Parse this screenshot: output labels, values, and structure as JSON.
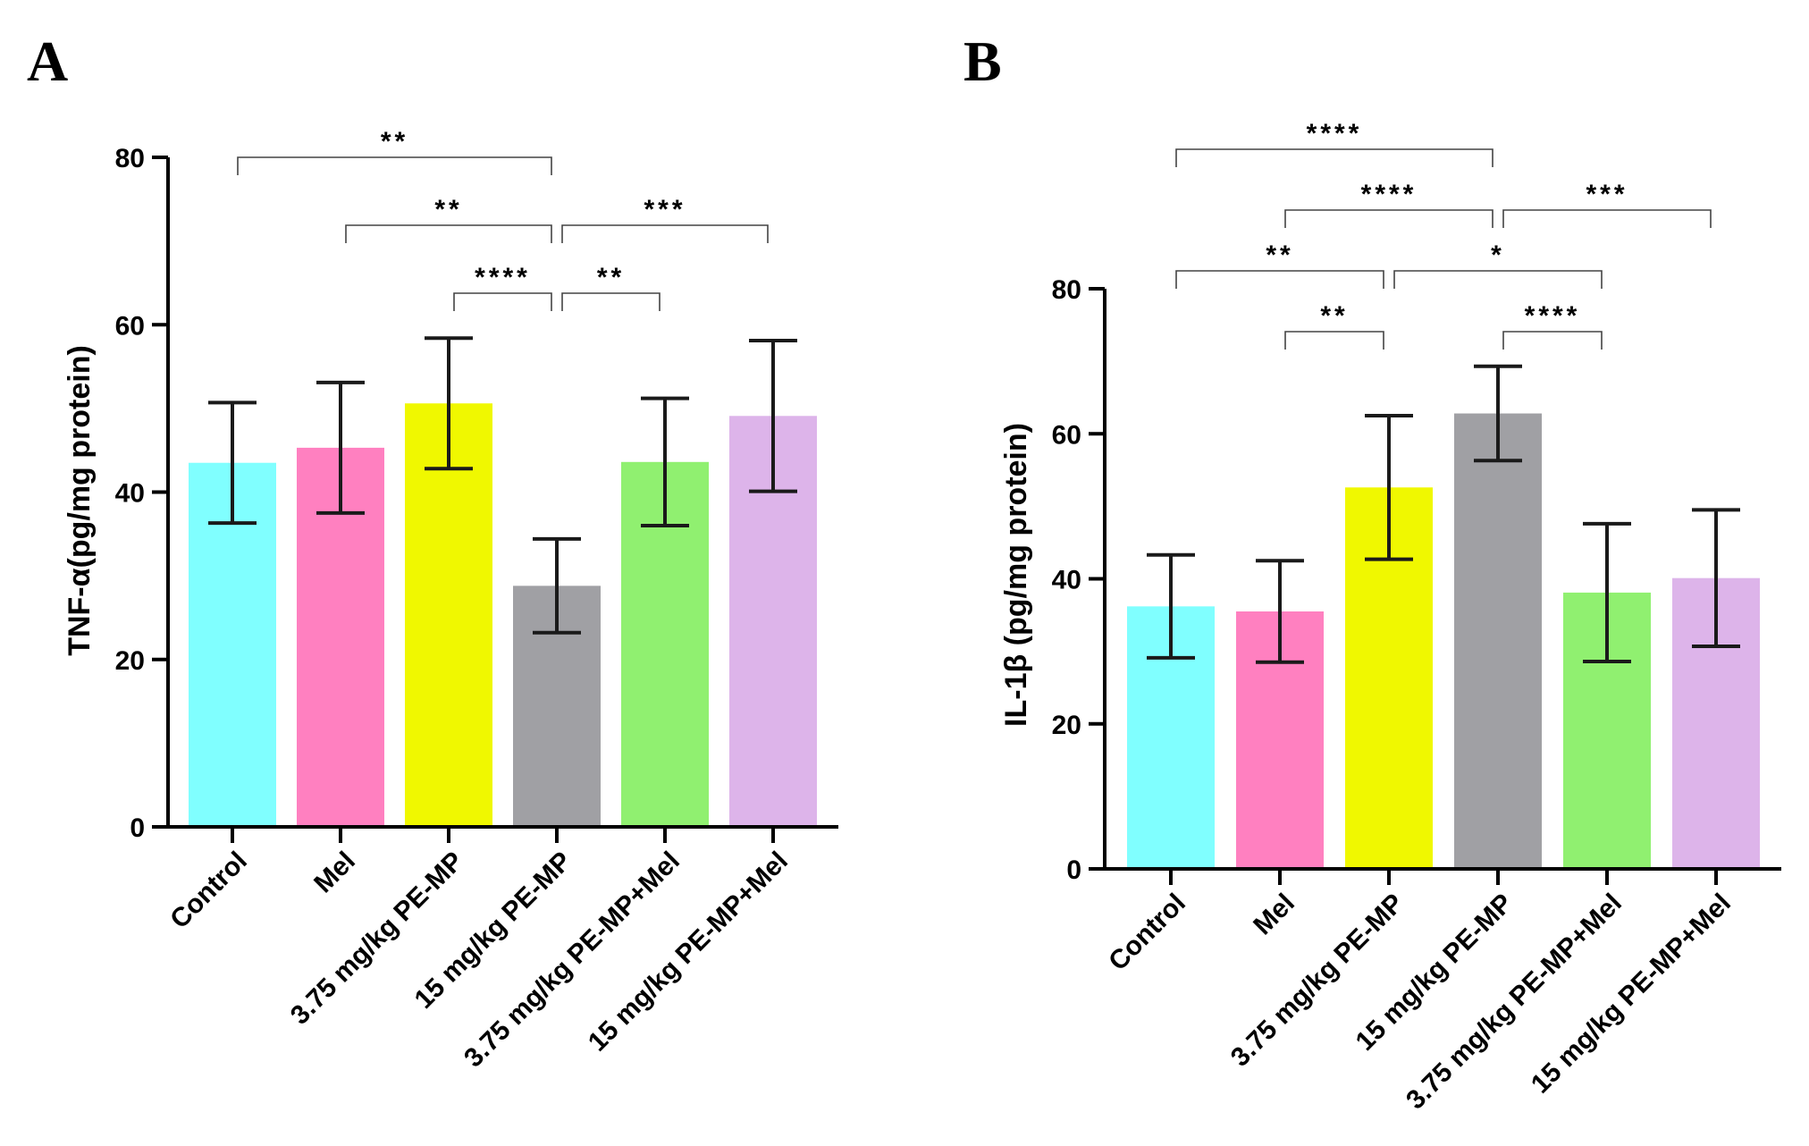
{
  "chart_data": [
    {
      "panel": "A",
      "type": "bar",
      "ylabel": "TNF-α(pg/mg protein)",
      "ylim": [
        0,
        80
      ],
      "yticks": [
        0,
        20,
        40,
        60,
        80
      ],
      "categories": [
        "Control",
        "Mel",
        "3.75 mg/kg PE-MP",
        "15 mg/kg PE-MP",
        "3.75 mg/kg PE-MP+Mel",
        "15 mg/kg PE-MP+Mel"
      ],
      "values": [
        43.5,
        45.3,
        50.6,
        28.8,
        43.6,
        49.1
      ],
      "errors": [
        7.2,
        7.8,
        7.8,
        5.6,
        7.6,
        9.0
      ],
      "colors": [
        "#80FFFF",
        "#FF80C0",
        "#F0F800",
        "#A0A0A4",
        "#90F070",
        "#DDB4EA"
      ],
      "significance": [
        {
          "from": 0,
          "to": 3,
          "label": "**",
          "level": 0
        },
        {
          "from": 1,
          "to": 3,
          "label": "**",
          "level": 1
        },
        {
          "from": 3,
          "to": 5,
          "label": "***",
          "level": 1
        },
        {
          "from": 2,
          "to": 3,
          "label": "****",
          "level": 2
        },
        {
          "from": 3,
          "to": 4,
          "label": "**",
          "level": 2
        }
      ]
    },
    {
      "panel": "B",
      "type": "bar",
      "ylabel": "IL-1β (pg/mg protein)",
      "ylim": [
        0,
        80
      ],
      "yticks": [
        0,
        20,
        40,
        60,
        80
      ],
      "categories": [
        "Control",
        "Mel",
        "3.75 mg/kg PE-MP",
        "15 mg/kg PE-MP",
        "3.75 mg/kg PE-MP+Mel",
        "15 mg/kg PE-MP+Mel"
      ],
      "values": [
        36.2,
        35.5,
        52.6,
        62.8,
        38.1,
        40.1
      ],
      "errors": [
        7.1,
        7.0,
        9.9,
        6.5,
        9.5,
        9.4
      ],
      "colors": [
        "#80FFFF",
        "#FF80C0",
        "#F0F800",
        "#A0A0A4",
        "#90F070",
        "#DDB4EA"
      ],
      "significance": [
        {
          "from": 0,
          "to": 3,
          "label": "****",
          "level": 0
        },
        {
          "from": 1,
          "to": 3,
          "label": "****",
          "level": 1
        },
        {
          "from": 3,
          "to": 5,
          "label": "***",
          "level": 1
        },
        {
          "from": 0,
          "to": 2,
          "label": "**",
          "level": 2
        },
        {
          "from": 2,
          "to": 4,
          "label": "*",
          "level": 2
        },
        {
          "from": 1,
          "to": 2,
          "label": "**",
          "level": 3
        },
        {
          "from": 3,
          "to": 4,
          "label": "****",
          "level": 3
        }
      ]
    }
  ]
}
